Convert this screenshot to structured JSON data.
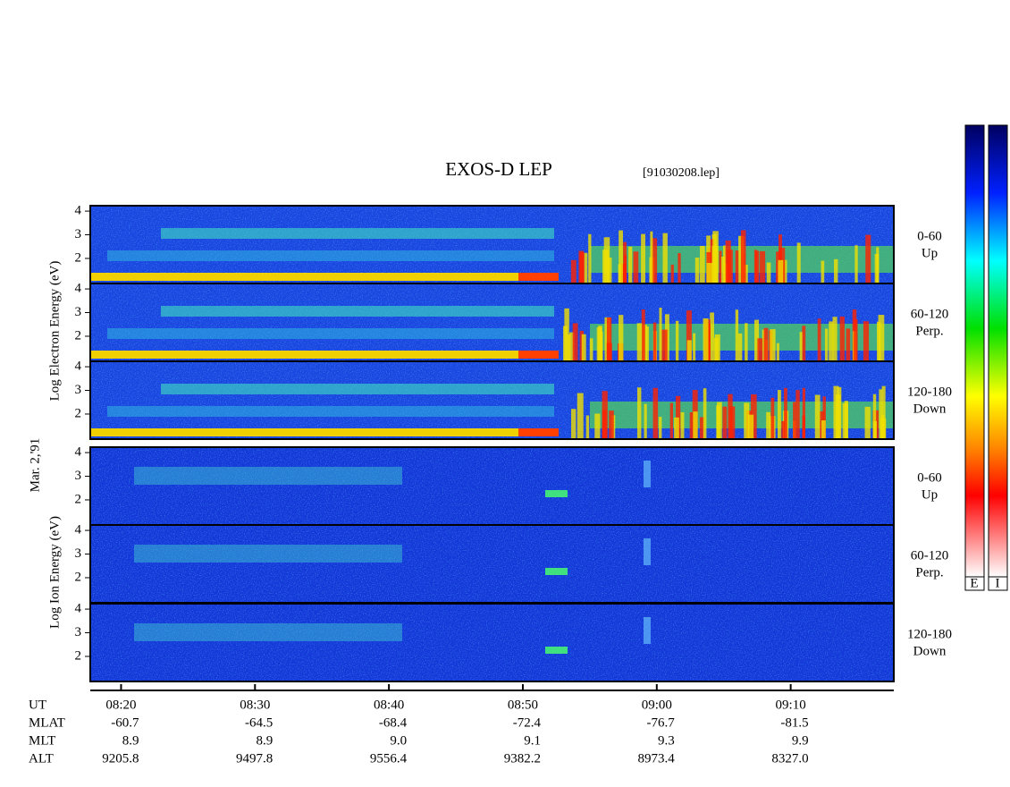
{
  "chart_data": {
    "type": "spectrogram",
    "title": "EXOS-D LEP",
    "subtitle": "[91030208.lep]",
    "date": "Mar. 2,'91",
    "ylabels": [
      "Log  Electron  Energy (eV)",
      "Log  Ion  Energy (eV)"
    ],
    "panels": [
      {
        "label": [
          "0-60",
          "Up"
        ]
      },
      {
        "label": [
          "60-120",
          "Perp."
        ]
      },
      {
        "label": [
          "120-180",
          "Down"
        ]
      },
      {
        "label": [
          "0-60",
          "Up"
        ]
      },
      {
        "label": [
          "60-120",
          "Perp."
        ]
      },
      {
        "label": [
          "120-180",
          "Down"
        ]
      }
    ],
    "ylim": [
      0.94,
      4.23
    ],
    "yticks": [
      2,
      3,
      4
    ],
    "xlim": [
      497.7,
      557.7
    ],
    "xticks": [
      {
        "value": 500,
        "label": "08:20"
      },
      {
        "value": 510,
        "label": "08:30"
      },
      {
        "value": 520,
        "label": "08:40"
      },
      {
        "value": 530,
        "label": "08:50"
      },
      {
        "value": 540,
        "label": "09:00"
      },
      {
        "value": 550,
        "label": "09:10"
      }
    ],
    "x_axis_name": "UT",
    "rows": [
      {
        "name": "MLAT",
        "values": [
          "-60.7",
          "-64.5",
          "-68.4",
          "-72.4",
          "-76.7",
          "-81.5"
        ]
      },
      {
        "name": "MLT",
        "values": [
          "8.9",
          "8.9",
          "9.0",
          "9.1",
          "9.3",
          "9.9"
        ]
      },
      {
        "name": "ALT",
        "values": [
          "9205.8",
          "9497.8",
          "9556.4",
          "9382.2",
          "8973.4",
          "8327.0"
        ]
      }
    ],
    "colorbar_labels": [
      "E",
      "I"
    ]
  }
}
